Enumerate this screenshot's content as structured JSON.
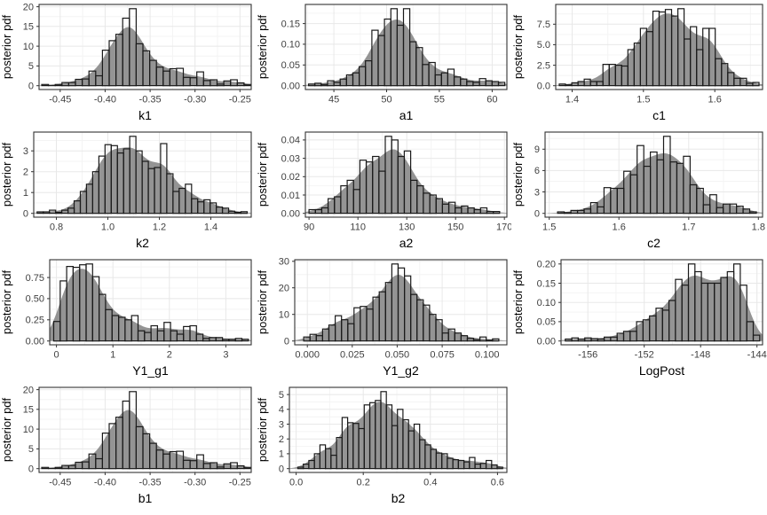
{
  "figure": {
    "background": "#ffffff",
    "shared_ylabel": "posterior pdf",
    "grid_columns": 3
  },
  "style": {
    "bar_stroke": "#1a1a1a",
    "density_fill": "#8e8e8e",
    "density_opacity": 0.95,
    "grid_major": "#e8e8e8",
    "grid_minor": "#f4f4f4",
    "panel_border": "#333333",
    "tick_color": "#333333",
    "tick_label_color": "#404040",
    "title_color": "#000000"
  },
  "chart_data": [
    {
      "type": "bar",
      "subtype": "histogram-with-density",
      "name": "k1",
      "xlabel": "k1",
      "ylabel": "posterior pdf",
      "xlim": [
        -0.4735,
        -0.2375
      ],
      "xticks": [
        -0.45,
        -0.4,
        -0.35,
        -0.3,
        -0.25
      ],
      "xtick_labels": [
        "-0.45",
        "-0.40",
        "-0.35",
        "-0.30",
        "-0.25"
      ],
      "yticks": [
        0,
        5,
        10,
        15,
        20
      ],
      "ytick_labels": [
        "0",
        "5",
        "10",
        "15",
        "20"
      ],
      "bin_start": -0.4705,
      "bin_width": 0.0075,
      "bin_heights": [
        0.3,
        0.05,
        0.3,
        0.8,
        0.8,
        1.6,
        1.7,
        3.7,
        2.5,
        9.0,
        11.4,
        13.0,
        17.1,
        19.5,
        10.6,
        8.8,
        6.4,
        4.7,
        3.7,
        4.3,
        4.4,
        2.1,
        2.0,
        3.5,
        1.3,
        1.5,
        0.4,
        1.2,
        1.5,
        0.7,
        0.3
      ]
    },
    {
      "type": "bar",
      "subtype": "histogram-with-density",
      "name": "a1",
      "xlabel": "a1",
      "ylabel": "posterior pdf",
      "xlim": [
        42.3,
        61.4
      ],
      "xticks": [
        45,
        50,
        55,
        60
      ],
      "xtick_labels": [
        "45",
        "50",
        "55",
        "60"
      ],
      "yticks": [
        0.0,
        0.05,
        0.1,
        0.15
      ],
      "ytick_labels": [
        "0.00",
        "0.05",
        "0.10",
        "0.15"
      ],
      "bin_start": 42.6,
      "bin_width": 0.6,
      "bin_heights": [
        0.004,
        0.006,
        0.003,
        0.012,
        0.008,
        0.016,
        0.026,
        0.031,
        0.046,
        0.06,
        0.134,
        0.121,
        0.161,
        0.186,
        0.146,
        0.186,
        0.106,
        0.092,
        0.051,
        0.056,
        0.026,
        0.031,
        0.04,
        0.021,
        0.016,
        0.01,
        0.008,
        0.017,
        0.012,
        0.01,
        0.008
      ]
    },
    {
      "type": "bar",
      "subtype": "histogram-with-density",
      "name": "c1",
      "xlabel": "c1",
      "ylabel": "posterior pdf",
      "xlim": [
        1.377,
        1.667
      ],
      "xticks": [
        1.4,
        1.5,
        1.6
      ],
      "xtick_labels": [
        "1.4",
        "1.5",
        "1.6"
      ],
      "yticks": [
        0.0,
        2.5,
        5.0,
        7.5
      ],
      "ytick_labels": [
        "0.0",
        "2.5",
        "5.0",
        "7.5"
      ],
      "bin_start": 1.382,
      "bin_width": 0.00875,
      "bin_heights": [
        0.2,
        0.1,
        0.35,
        0.5,
        0.8,
        0.5,
        0.5,
        2.6,
        2.6,
        2.5,
        2.4,
        4.4,
        5.2,
        7.0,
        6.6,
        9.1,
        9.0,
        9.3,
        8.5,
        9.4,
        5.7,
        7.2,
        4.4,
        7.0,
        7.0,
        3.3,
        2.7,
        1.6,
        0.9,
        0.9,
        0.3,
        0.4
      ]
    },
    {
      "type": "bar",
      "subtype": "histogram-with-density",
      "name": "k2",
      "xlabel": "k2",
      "ylabel": "posterior pdf",
      "xlim": [
        0.712,
        1.557
      ],
      "xticks": [
        0.8,
        1.0,
        1.2,
        1.4
      ],
      "xtick_labels": [
        "0.8",
        "1.0",
        "1.2",
        "1.4"
      ],
      "yticks": [
        0,
        1,
        2,
        3
      ],
      "ytick_labels": [
        "0",
        "1",
        "2",
        "3"
      ],
      "bin_start": 0.725,
      "bin_width": 0.024,
      "bin_heights": [
        0.07,
        0.07,
        0.15,
        0.05,
        0.15,
        0.25,
        0.6,
        1.05,
        1.4,
        2.0,
        2.75,
        3.3,
        3.25,
        2.9,
        3.1,
        3.7,
        3.0,
        2.5,
        2.15,
        2.2,
        3.35,
        1.9,
        1.05,
        1.2,
        1.4,
        0.7,
        0.55,
        0.65,
        0.5,
        0.3,
        0.25,
        0.1,
        0.05,
        0.08
      ]
    },
    {
      "type": "bar",
      "subtype": "histogram-with-density",
      "name": "a2",
      "xlabel": "a2",
      "ylabel": "posterior pdf",
      "xlim": [
        88.5,
        171
      ],
      "xticks": [
        90,
        110,
        130,
        150,
        170
      ],
      "xtick_labels": [
        "90",
        "110",
        "130",
        "150",
        "170"
      ],
      "yticks": [
        0.0,
        0.01,
        0.02,
        0.03,
        0.04
      ],
      "ytick_labels": [
        "0.00",
        "0.01",
        "0.02",
        "0.03",
        "0.04"
      ],
      "bin_start": 90,
      "bin_width": 2.6,
      "bin_heights": [
        0.002,
        0.002,
        0.003,
        0.008,
        0.009,
        0.015,
        0.018,
        0.013,
        0.029,
        0.028,
        0.031,
        0.023,
        0.042,
        0.04,
        0.031,
        0.034,
        0.018,
        0.015,
        0.011,
        0.01,
        0.008,
        0.005,
        0.006,
        0.003,
        0.004,
        0.003,
        0.002,
        0.003,
        0.001,
        0.001
      ]
    },
    {
      "type": "bar",
      "subtype": "histogram-with-density",
      "name": "c2",
      "xlabel": "c2",
      "ylabel": "posterior pdf",
      "xlim": [
        1.494,
        1.806
      ],
      "xticks": [
        1.5,
        1.6,
        1.7,
        1.8
      ],
      "xtick_labels": [
        "1.5",
        "1.6",
        "1.7",
        "1.8"
      ],
      "yticks": [
        0,
        3,
        6,
        9
      ],
      "ytick_labels": [
        "0",
        "3",
        "6",
        "9"
      ],
      "bin_start": 1.512,
      "bin_width": 0.0095,
      "bin_heights": [
        0.2,
        0.1,
        0.4,
        0.4,
        0.6,
        1.5,
        0.9,
        3.6,
        3.5,
        3.5,
        5.9,
        5.4,
        9.5,
        6.6,
        8.6,
        7.5,
        10.8,
        7.2,
        7.0,
        8.0,
        4.0,
        3.5,
        1.2,
        2.6,
        0.8,
        1.3,
        1.3,
        1.0,
        0.6,
        0.2
      ]
    },
    {
      "type": "bar",
      "subtype": "histogram-with-density",
      "name": "Y1_g1",
      "xlabel": "Y1_g1",
      "ylabel": "posterior pdf",
      "xlim": [
        -0.12,
        3.45
      ],
      "xticks": [
        0,
        1,
        2,
        3
      ],
      "xtick_labels": [
        "0",
        "1",
        "2",
        "3"
      ],
      "yticks": [
        0.0,
        0.25,
        0.5,
        0.75
      ],
      "ytick_labels": [
        "0.00",
        "0.25",
        "0.50",
        "0.75"
      ],
      "bin_start": -0.05,
      "bin_width": 0.115,
      "bin_heights": [
        0.23,
        0.71,
        0.88,
        0.87,
        0.9,
        0.91,
        0.76,
        0.55,
        0.37,
        0.3,
        0.28,
        0.25,
        0.3,
        0.12,
        0.1,
        0.18,
        0.12,
        0.22,
        0.12,
        0.08,
        0.17,
        0.18,
        0.08,
        0.03,
        0.04,
        0.04,
        0.02,
        0.02,
        0.03,
        0.02
      ]
    },
    {
      "type": "bar",
      "subtype": "histogram-with-density",
      "name": "Y1_g2",
      "xlabel": "Y1_g2",
      "ylabel": "posterior pdf",
      "xlim": [
        -0.007,
        0.111
      ],
      "xticks": [
        0.0,
        0.025,
        0.05,
        0.075,
        0.1
      ],
      "xtick_labels": [
        "0.000",
        "0.025",
        "0.050",
        "0.075",
        "0.100"
      ],
      "yticks": [
        0,
        10,
        20,
        30
      ],
      "ytick_labels": [
        "0",
        "10",
        "20",
        "30"
      ],
      "bin_start": -0.002,
      "bin_width": 0.0035,
      "bin_heights": [
        1.5,
        2.5,
        2.0,
        4.5,
        6.0,
        9.5,
        8.0,
        6.5,
        12.5,
        13.0,
        12.0,
        16.5,
        18.5,
        22.0,
        29.0,
        27.5,
        24.5,
        17.5,
        15.5,
        13.5,
        10.0,
        8.0,
        3.0,
        4.5,
        3.0,
        2.0,
        1.0,
        0.5,
        1.5,
        0.3,
        0.8
      ]
    },
    {
      "type": "bar",
      "subtype": "histogram-with-density",
      "name": "LogPost",
      "xlabel": "LogPost",
      "ylabel": "posterior pdf",
      "xlim": [
        -157.9,
        -143.6
      ],
      "xticks": [
        -156,
        -152,
        -148,
        -144
      ],
      "xtick_labels": [
        "-156",
        "-152",
        "-148",
        "-144"
      ],
      "yticks": [
        0.0,
        0.05,
        0.1,
        0.15,
        0.2
      ],
      "ytick_labels": [
        "0.00",
        "0.05",
        "0.10",
        "0.15",
        "0.20"
      ],
      "bin_start": -157.6,
      "bin_width": 0.46,
      "bin_heights": [
        0.005,
        0.008,
        0.005,
        0.008,
        0.006,
        0.005,
        0.01,
        0.01,
        0.02,
        0.025,
        0.025,
        0.05,
        0.055,
        0.065,
        0.085,
        0.08,
        0.105,
        0.16,
        0.145,
        0.2,
        0.18,
        0.15,
        0.15,
        0.15,
        0.165,
        0.18,
        0.2,
        0.145,
        0.05,
        0.015
      ]
    },
    {
      "type": "bar",
      "subtype": "histogram-with-density",
      "name": "b1",
      "xlabel": "b1",
      "ylabel": "posterior pdf",
      "xlim": [
        -0.4735,
        -0.2375
      ],
      "xticks": [
        -0.45,
        -0.4,
        -0.35,
        -0.3,
        -0.25
      ],
      "xtick_labels": [
        "-0.45",
        "-0.40",
        "-0.35",
        "-0.30",
        "-0.25"
      ],
      "yticks": [
        0,
        5,
        10,
        15,
        20
      ],
      "ytick_labels": [
        "0",
        "5",
        "10",
        "15",
        "20"
      ],
      "bin_start": -0.4705,
      "bin_width": 0.0075,
      "bin_heights": [
        0.3,
        0.05,
        0.3,
        0.8,
        0.8,
        1.6,
        1.7,
        3.7,
        2.5,
        9.0,
        11.4,
        13.0,
        17.1,
        19.5,
        10.6,
        8.8,
        6.4,
        4.7,
        3.7,
        4.3,
        4.4,
        2.1,
        2.0,
        3.5,
        1.3,
        1.5,
        0.4,
        1.2,
        1.5,
        0.7,
        0.3
      ]
    },
    {
      "type": "bar",
      "subtype": "histogram-with-density",
      "name": "b2",
      "xlabel": "b2",
      "ylabel": "posterior pdf",
      "xlim": [
        -0.02,
        0.628
      ],
      "xticks": [
        0.0,
        0.2,
        0.4,
        0.6
      ],
      "xtick_labels": [
        "0.0",
        "0.2",
        "0.4",
        "0.6"
      ],
      "yticks": [
        0,
        1,
        2,
        3,
        4,
        5
      ],
      "ytick_labels": [
        "0",
        "1",
        "2",
        "3",
        "4",
        "5"
      ],
      "bin_start": 0.005,
      "bin_width": 0.0165,
      "bin_heights": [
        0.1,
        0.3,
        0.55,
        1.0,
        1.6,
        1.35,
        0.9,
        2.1,
        3.45,
        3.1,
        3.05,
        2.7,
        4.3,
        4.45,
        4.6,
        5.2,
        4.3,
        2.9,
        4.0,
        3.3,
        2.55,
        3.0,
        1.95,
        1.6,
        1.3,
        1.05,
        1.0,
        0.7,
        0.6,
        0.55,
        0.45,
        0.75,
        0.3,
        0.35,
        0.55,
        0.25,
        0.1
      ]
    }
  ]
}
